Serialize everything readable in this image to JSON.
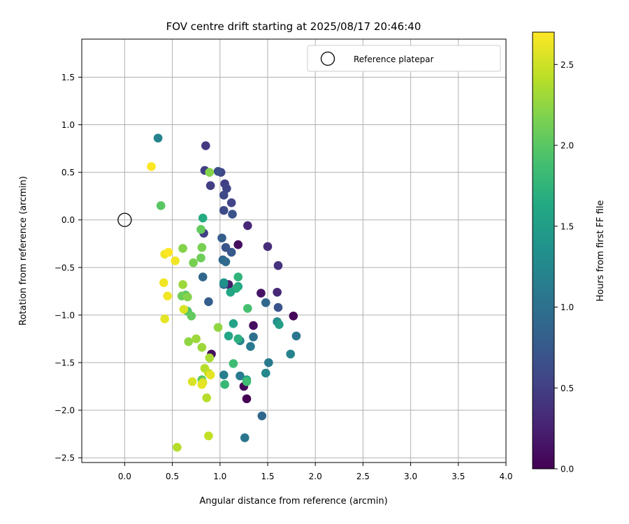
{
  "chart_data": {
    "type": "scatter",
    "title": "FOV centre drift starting at 2025/08/17 20:46:40",
    "xlabel": "Angular distance from reference (arcmin)",
    "ylabel": "Rotation from reference (arcmin)",
    "xlim": [
      -0.45,
      4.0
    ],
    "ylim": [
      -2.55,
      1.9
    ],
    "xticks": [
      "0.0",
      "0.5",
      "1.0",
      "1.5",
      "2.0",
      "2.5",
      "3.0",
      "3.5",
      "4.0"
    ],
    "yticks": [
      "1.5",
      "1.0",
      "0.5",
      "0.0",
      "−0.5",
      "−1.0",
      "−1.5",
      "−2.0",
      "−2.5"
    ],
    "grid": true,
    "legend": {
      "placement": "top-right",
      "entries": [
        "Reference platepar"
      ]
    },
    "reference_point": {
      "x": 0.0,
      "y": 0.0
    },
    "colorbar": {
      "label": "Hours from first FF file",
      "colormap": "viridis",
      "range": [
        0.0,
        2.7
      ],
      "ticks": [
        "0.0",
        "0.5",
        "1.0",
        "1.5",
        "2.0",
        "2.5"
      ]
    },
    "points": [
      {
        "x": 1.28,
        "y": -1.88,
        "c": 0.0
      },
      {
        "x": 1.25,
        "y": -1.75,
        "c": 0.05
      },
      {
        "x": 0.91,
        "y": -1.41,
        "c": 0.1
      },
      {
        "x": 1.35,
        "y": -1.11,
        "c": 0.1
      },
      {
        "x": 1.77,
        "y": -1.01,
        "c": 0.05
      },
      {
        "x": 1.43,
        "y": -0.77,
        "c": 0.15
      },
      {
        "x": 1.19,
        "y": -0.26,
        "c": 0.1
      },
      {
        "x": 1.09,
        "y": -0.68,
        "c": 0.2
      },
      {
        "x": 1.6,
        "y": -0.76,
        "c": 0.3
      },
      {
        "x": 1.29,
        "y": -0.06,
        "c": 0.3
      },
      {
        "x": 1.5,
        "y": -0.28,
        "c": 0.35
      },
      {
        "x": 1.61,
        "y": -0.48,
        "c": 0.4
      },
      {
        "x": 0.85,
        "y": 0.78,
        "c": 0.45
      },
      {
        "x": 0.84,
        "y": 0.52,
        "c": 0.5
      },
      {
        "x": 0.9,
        "y": 0.36,
        "c": 0.5
      },
      {
        "x": 1.01,
        "y": 0.5,
        "c": 0.55
      },
      {
        "x": 0.98,
        "y": 0.51,
        "c": 0.65
      },
      {
        "x": 1.05,
        "y": 0.38,
        "c": 0.5
      },
      {
        "x": 1.07,
        "y": 0.33,
        "c": 0.55
      },
      {
        "x": 1.04,
        "y": 0.26,
        "c": 0.6
      },
      {
        "x": 1.12,
        "y": 0.18,
        "c": 0.55
      },
      {
        "x": 1.04,
        "y": 0.1,
        "c": 0.6
      },
      {
        "x": 1.13,
        "y": 0.06,
        "c": 0.7
      },
      {
        "x": 0.83,
        "y": -0.14,
        "c": 0.5
      },
      {
        "x": 1.02,
        "y": -0.19,
        "c": 0.8
      },
      {
        "x": 1.06,
        "y": -0.29,
        "c": 0.7
      },
      {
        "x": 1.12,
        "y": -0.34,
        "c": 0.75
      },
      {
        "x": 1.03,
        "y": -0.42,
        "c": 0.9
      },
      {
        "x": 1.06,
        "y": -0.44,
        "c": 0.95
      },
      {
        "x": 0.82,
        "y": -0.6,
        "c": 0.9
      },
      {
        "x": 1.04,
        "y": -0.68,
        "c": 1.0
      },
      {
        "x": 1.61,
        "y": -0.92,
        "c": 0.7
      },
      {
        "x": 1.48,
        "y": -0.87,
        "c": 0.9
      },
      {
        "x": 0.88,
        "y": -0.86,
        "c": 0.8
      },
      {
        "x": 1.35,
        "y": -1.23,
        "c": 1.0
      },
      {
        "x": 1.32,
        "y": -1.33,
        "c": 1.1
      },
      {
        "x": 1.21,
        "y": -1.27,
        "c": 1.2
      },
      {
        "x": 1.8,
        "y": -1.22,
        "c": 1.05
      },
      {
        "x": 1.74,
        "y": -1.41,
        "c": 1.2
      },
      {
        "x": 1.51,
        "y": -1.5,
        "c": 1.1
      },
      {
        "x": 1.48,
        "y": -1.61,
        "c": 1.25
      },
      {
        "x": 1.21,
        "y": -1.64,
        "c": 1.1
      },
      {
        "x": 1.04,
        "y": -1.63,
        "c": 1.15
      },
      {
        "x": 1.44,
        "y": -2.06,
        "c": 0.9
      },
      {
        "x": 1.26,
        "y": -2.29,
        "c": 1.05
      },
      {
        "x": 0.35,
        "y": 0.86,
        "c": 1.2
      },
      {
        "x": 1.6,
        "y": -1.07,
        "c": 1.3
      },
      {
        "x": 1.62,
        "y": -1.1,
        "c": 1.5
      },
      {
        "x": 1.04,
        "y": -0.66,
        "c": 1.35
      },
      {
        "x": 1.19,
        "y": -0.6,
        "c": 1.75
      },
      {
        "x": 1.19,
        "y": -0.7,
        "c": 1.6
      },
      {
        "x": 1.17,
        "y": -0.72,
        "c": 1.7
      },
      {
        "x": 1.11,
        "y": -0.76,
        "c": 1.6
      },
      {
        "x": 1.14,
        "y": -1.09,
        "c": 1.55
      },
      {
        "x": 1.09,
        "y": -1.22,
        "c": 1.6
      },
      {
        "x": 1.19,
        "y": -1.25,
        "c": 1.7
      },
      {
        "x": 0.82,
        "y": 0.02,
        "c": 1.65
      },
      {
        "x": 1.28,
        "y": -1.68,
        "c": 1.6
      },
      {
        "x": 1.28,
        "y": -1.7,
        "c": 1.85
      },
      {
        "x": 1.05,
        "y": -1.73,
        "c": 1.8
      },
      {
        "x": 1.14,
        "y": -1.51,
        "c": 1.85
      },
      {
        "x": 1.29,
        "y": -0.93,
        "c": 1.9
      },
      {
        "x": 0.38,
        "y": 0.15,
        "c": 2.0
      },
      {
        "x": 0.66,
        "y": -0.96,
        "c": 1.95
      },
      {
        "x": 0.64,
        "y": -0.79,
        "c": 2.0
      },
      {
        "x": 0.7,
        "y": -1.01,
        "c": 2.05
      },
      {
        "x": 0.8,
        "y": -0.1,
        "c": 2.05
      },
      {
        "x": 0.89,
        "y": 0.5,
        "c": 2.2
      },
      {
        "x": 0.8,
        "y": -0.4,
        "c": 2.1
      },
      {
        "x": 0.72,
        "y": -0.45,
        "c": 2.15
      },
      {
        "x": 0.81,
        "y": -0.29,
        "c": 2.15
      },
      {
        "x": 0.61,
        "y": -0.3,
        "c": 2.2
      },
      {
        "x": 0.6,
        "y": -0.8,
        "c": 2.1
      },
      {
        "x": 0.66,
        "y": -0.81,
        "c": 2.2
      },
      {
        "x": 0.61,
        "y": -0.68,
        "c": 2.3
      },
      {
        "x": 0.98,
        "y": -1.13,
        "c": 2.25
      },
      {
        "x": 0.67,
        "y": -1.28,
        "c": 2.25
      },
      {
        "x": 0.75,
        "y": -1.25,
        "c": 2.3
      },
      {
        "x": 0.81,
        "y": -1.34,
        "c": 2.3
      },
      {
        "x": 0.89,
        "y": -1.45,
        "c": 2.35
      },
      {
        "x": 0.84,
        "y": -1.56,
        "c": 2.4
      },
      {
        "x": 0.88,
        "y": -1.61,
        "c": 2.45
      },
      {
        "x": 0.81,
        "y": -1.68,
        "c": 2.0
      },
      {
        "x": 0.82,
        "y": -1.71,
        "c": 2.55
      },
      {
        "x": 0.81,
        "y": -1.73,
        "c": 2.6
      },
      {
        "x": 0.9,
        "y": -1.63,
        "c": 2.6
      },
      {
        "x": 0.71,
        "y": -1.7,
        "c": 2.55
      },
      {
        "x": 0.86,
        "y": -1.87,
        "c": 2.4
      },
      {
        "x": 0.88,
        "y": -2.27,
        "c": 2.45
      },
      {
        "x": 0.55,
        "y": -2.39,
        "c": 2.4
      },
      {
        "x": 0.62,
        "y": -0.94,
        "c": 2.55
      },
      {
        "x": 0.42,
        "y": -1.04,
        "c": 2.6
      },
      {
        "x": 0.41,
        "y": -0.66,
        "c": 2.65
      },
      {
        "x": 0.45,
        "y": -0.8,
        "c": 2.65
      },
      {
        "x": 0.42,
        "y": -0.36,
        "c": 2.65
      },
      {
        "x": 0.46,
        "y": -0.34,
        "c": 2.7
      },
      {
        "x": 0.53,
        "y": -0.43,
        "c": 2.65
      },
      {
        "x": 0.28,
        "y": 0.56,
        "c": 2.7
      }
    ]
  }
}
